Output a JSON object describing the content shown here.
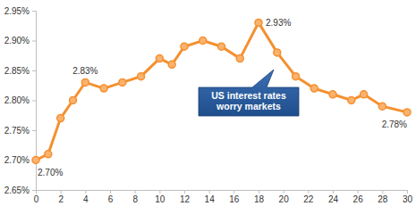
{
  "chart_data": {
    "type": "line",
    "color": "#f4902f",
    "marker": "circle",
    "grid": false,
    "data_labels": true,
    "x": [
      0,
      1,
      2,
      3,
      4,
      5.5,
      7,
      8.5,
      10,
      11,
      12,
      13.5,
      15,
      16.5,
      18,
      19.5,
      21,
      22.5,
      24,
      25.5,
      26.5,
      28,
      30
    ],
    "values": [
      2.7,
      2.71,
      2.77,
      2.8,
      2.83,
      2.82,
      2.83,
      2.84,
      2.87,
      2.86,
      2.89,
      2.9,
      2.89,
      2.87,
      2.93,
      2.88,
      2.84,
      2.82,
      2.81,
      2.8,
      2.81,
      2.79,
      2.78
    ],
    "value_labels": [
      "2.70%",
      null,
      null,
      null,
      "2.83%",
      null,
      null,
      null,
      null,
      null,
      null,
      null,
      null,
      null,
      "2.93%",
      null,
      null,
      null,
      null,
      null,
      null,
      null,
      "2.78%"
    ],
    "xlim": [
      0,
      30
    ],
    "xticks": [
      0,
      2,
      4,
      6,
      8,
      10,
      12,
      14,
      16,
      18,
      20,
      22,
      24,
      26,
      28,
      30
    ],
    "ylim": [
      2.65,
      2.95
    ],
    "yticks": [
      {
        "value": 2.65,
        "label": "2.65%"
      },
      {
        "value": 2.7,
        "label": "2.70%"
      },
      {
        "value": 2.75,
        "label": "2.75%"
      },
      {
        "value": 2.8,
        "label": "2.80%"
      },
      {
        "value": 2.85,
        "label": "2.85%"
      },
      {
        "value": 2.9,
        "label": "2.90%"
      },
      {
        "value": 2.95,
        "label": "2.95%"
      }
    ],
    "annotations": [
      {
        "text": [
          "US interest rates",
          "worry markets"
        ]
      }
    ]
  }
}
